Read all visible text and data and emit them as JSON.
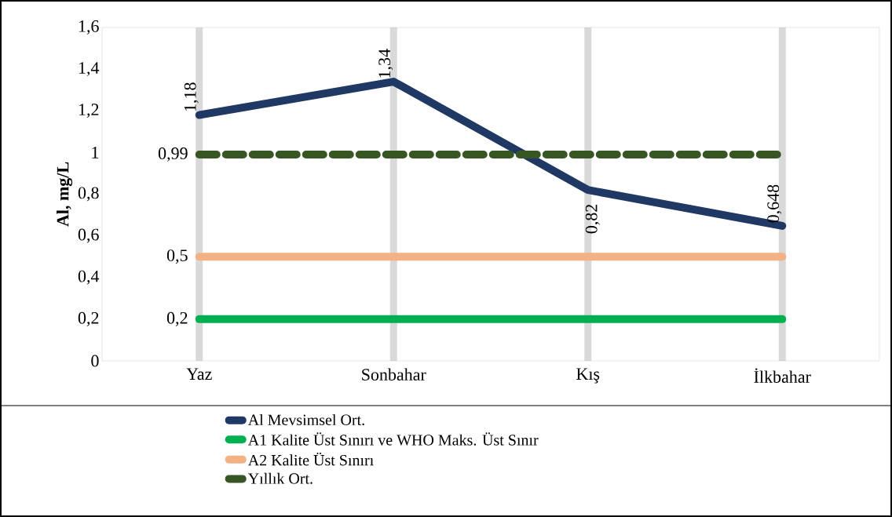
{
  "chart_data": {
    "type": "line",
    "ylabel": "Al, mg/L",
    "categories": [
      "Yaz",
      "Sonbahar",
      "Kış",
      "İlkbahar"
    ],
    "ylim": [
      0,
      1.6
    ],
    "yticks": [
      0,
      {
        "value": 0.2,
        "label": "0,2"
      },
      {
        "value": 0.4,
        "label": "0,4"
      },
      {
        "value": 0.6,
        "label": "0,6"
      },
      {
        "value": 0.8,
        "label": "0,8"
      },
      1,
      {
        "value": 1.2,
        "label": "1,2"
      },
      {
        "value": 1.4,
        "label": "1,4"
      },
      {
        "value": 1.6,
        "label": "1,6"
      }
    ],
    "grid": "x",
    "legend": "bottom",
    "series": [
      {
        "name": "Al Mevsimsel Ort.",
        "color": "#203864",
        "values": [
          1.18,
          1.34,
          0.82,
          0.648
        ],
        "value_labels": [
          "1,18",
          "1,34",
          "0,82",
          "0,648"
        ]
      },
      {
        "name": "A1 Kalite Üst Sınırı ve WHO Maks. Üst Sınır",
        "color": "#00b050",
        "values": [
          0.2,
          0.2,
          0.2,
          0.2
        ],
        "value_labels": [
          "0,2",
          null,
          null,
          null
        ]
      },
      {
        "name": "A2 Kalite Üst Sınırı",
        "color": "#f4b183",
        "values": [
          0.5,
          0.5,
          0.5,
          0.5
        ],
        "value_labels": [
          "0,5",
          null,
          null,
          null
        ]
      },
      {
        "name": "Yıllık Ort.",
        "color": "#375623",
        "values": [
          0.99,
          0.99,
          0.99,
          0.99
        ],
        "value_labels": [
          "0,99",
          null,
          null,
          null
        ],
        "line_style": "dashed"
      }
    ]
  }
}
